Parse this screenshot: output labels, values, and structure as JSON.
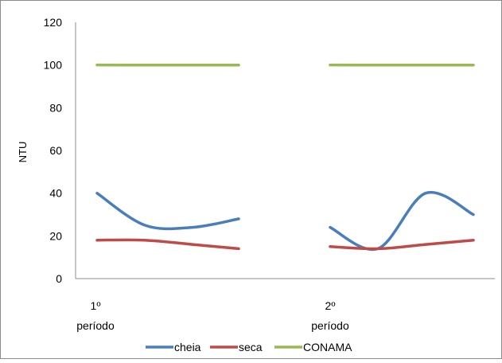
{
  "chart_data": {
    "type": "line",
    "title": "",
    "xlabel": "",
    "ylabel": "NTU",
    "ylim": [
      0,
      120
    ],
    "yticks": [
      "0",
      "20",
      "40",
      "60",
      "80",
      "100",
      "120"
    ],
    "grid": false,
    "legend_position": "bottom",
    "groups": [
      {
        "label_line1": "1º",
        "label_line2": "período"
      },
      {
        "label_line1": "2º",
        "label_line2": "período"
      }
    ],
    "series": [
      {
        "name": "cheia",
        "color": "#4a7ebb",
        "segments": [
          [
            [
              0,
              40
            ],
            [
              1,
              25
            ],
            [
              2,
              24
            ],
            [
              3,
              28
            ]
          ],
          [
            [
              0,
              24
            ],
            [
              1,
              14
            ],
            [
              2,
              40
            ],
            [
              3,
              30
            ]
          ]
        ]
      },
      {
        "name": "seca",
        "color": "#be4b48",
        "segments": [
          [
            [
              0,
              18
            ],
            [
              1,
              18
            ],
            [
              2,
              16
            ],
            [
              3,
              14
            ]
          ],
          [
            [
              0,
              15
            ],
            [
              1,
              14
            ],
            [
              2,
              16
            ],
            [
              3,
              18
            ]
          ]
        ]
      },
      {
        "name": "CONAMA",
        "color": "#98b954",
        "segments": [
          [
            [
              0,
              100
            ],
            [
              1,
              100
            ],
            [
              2,
              100
            ],
            [
              3,
              100
            ]
          ],
          [
            [
              0,
              100
            ],
            [
              1,
              100
            ],
            [
              2,
              100
            ],
            [
              3,
              100
            ]
          ]
        ]
      }
    ]
  }
}
